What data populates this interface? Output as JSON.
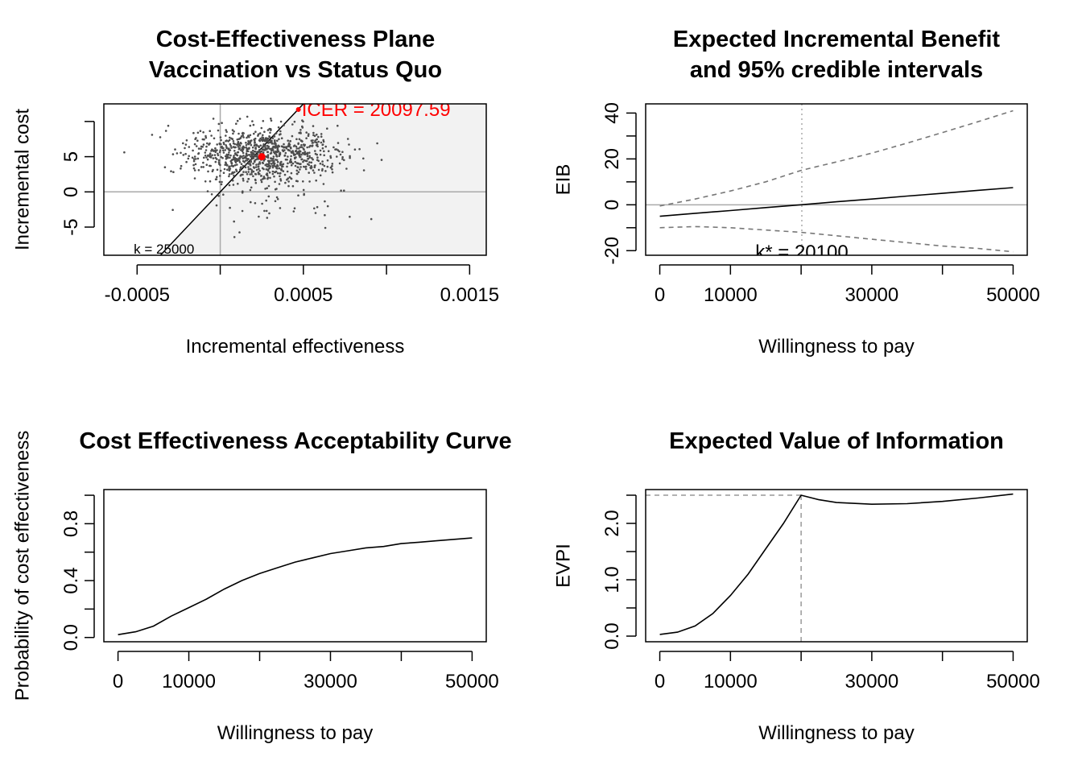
{
  "chart_data": [
    {
      "type": "scatter",
      "panel": "top-left",
      "title": [
        "Cost-Effectiveness Plane",
        "Vaccination vs Status Quo"
      ],
      "xlabel": "Incremental effectiveness",
      "ylabel": "Incremental cost",
      "xlim": [
        -0.0007,
        0.0016
      ],
      "ylim": [
        -9,
        12.5
      ],
      "xticks": [
        -0.0005,
        0,
        0.0005,
        0.001,
        0.0015
      ],
      "xtick_labels": [
        "-0.0005",
        "",
        "0.0005",
        "",
        "0.0015"
      ],
      "yticks": [
        -5,
        0,
        5,
        10
      ],
      "ytick_labels": [
        "-5",
        "0",
        "5",
        ""
      ],
      "mean_point": {
        "x": 0.00025,
        "y": 5.0
      },
      "icer_label": "ICER = 20097.59",
      "wtp_line": {
        "k": 25000
      },
      "wtp_label": "k = 25000",
      "n_points": 1000,
      "point_cloud": {
        "center_x": 0.00025,
        "center_y": 5.3,
        "spread_x": 0.00022,
        "spread_y": 2.0
      },
      "colors": {
        "points": "#4d4d4d",
        "icer": "#ff0000",
        "region": "#f2f2f2",
        "gridline": "#aaaaaa"
      }
    },
    {
      "type": "line",
      "panel": "top-right",
      "title": [
        "Expected Incremental Benefit",
        "and 95% credible intervals"
      ],
      "xlabel": "Willingness to pay",
      "ylabel": "EIB",
      "xlim": [
        -2000,
        52000
      ],
      "ylim": [
        -22,
        44
      ],
      "xticks": [
        0,
        10000,
        20000,
        30000,
        40000,
        50000
      ],
      "xtick_labels": [
        "0",
        "10000",
        "",
        "30000",
        "",
        "50000"
      ],
      "yticks": [
        -20,
        -10,
        0,
        10,
        20,
        30,
        40
      ],
      "ytick_labels": [
        "-20",
        "",
        "0",
        "",
        "20",
        "",
        "40"
      ],
      "x": [
        0,
        5000,
        10000,
        15000,
        20000,
        25000,
        30000,
        35000,
        40000,
        45000,
        50000
      ],
      "series": [
        {
          "style": "solid",
          "values": [
            -5.0,
            -3.7,
            -2.5,
            -1.2,
            0.0,
            1.3,
            2.5,
            3.8,
            5.0,
            6.3,
            7.5
          ]
        },
        {
          "style": "dashed",
          "values": [
            -0.5,
            2.5,
            6.0,
            10.0,
            15.0,
            18.7,
            22.5,
            26.9,
            31.5,
            36.2,
            41.0
          ]
        },
        {
          "style": "dashed",
          "values": [
            -10.0,
            -9.5,
            -10.0,
            -11.0,
            -12.0,
            -13.5,
            -15.0,
            -16.5,
            -18.0,
            -19.0,
            -20.5
          ]
        }
      ],
      "kstar": 20100,
      "kstar_label": "k* = 20100",
      "colors": {
        "ci": "#777777",
        "ref": "#aaaaaa"
      }
    },
    {
      "type": "line",
      "panel": "bottom-left",
      "title": "Cost Effectiveness Acceptability Curve",
      "xlabel": "Willingness to pay",
      "ylabel": "Probability of cost effectiveness",
      "xlim": [
        -2000,
        52000
      ],
      "ylim": [
        -0.03,
        1.04
      ],
      "xticks": [
        0,
        10000,
        20000,
        30000,
        40000,
        50000
      ],
      "xtick_labels": [
        "0",
        "10000",
        "",
        "30000",
        "",
        "50000"
      ],
      "yticks": [
        0,
        0.2,
        0.4,
        0.6,
        0.8,
        1.0
      ],
      "ytick_labels": [
        "0.0",
        "",
        "0.4",
        "",
        "0.8",
        ""
      ],
      "x": [
        0,
        2500,
        5000,
        7500,
        10000,
        12500,
        15000,
        17500,
        20000,
        22500,
        25000,
        27500,
        30000,
        32500,
        35000,
        37500,
        40000,
        42500,
        45000,
        47500,
        50000
      ],
      "values": [
        0.02,
        0.04,
        0.08,
        0.15,
        0.21,
        0.27,
        0.34,
        0.4,
        0.45,
        0.49,
        0.53,
        0.56,
        0.59,
        0.61,
        0.63,
        0.64,
        0.66,
        0.67,
        0.68,
        0.69,
        0.7
      ]
    },
    {
      "type": "line",
      "panel": "bottom-right",
      "title": "Expected Value of Information",
      "xlabel": "Willingness to pay",
      "ylabel": "EVPI",
      "xlim": [
        -2000,
        52000
      ],
      "ylim": [
        -0.1,
        2.6
      ],
      "xticks": [
        0,
        10000,
        20000,
        30000,
        40000,
        50000
      ],
      "xtick_labels": [
        "0",
        "10000",
        "",
        "30000",
        "",
        "50000"
      ],
      "yticks": [
        0,
        0.5,
        1.0,
        1.5,
        2.0,
        2.5
      ],
      "ytick_labels": [
        "0.0",
        "",
        "1.0",
        "",
        "2.0",
        ""
      ],
      "x": [
        0,
        2500,
        5000,
        7500,
        10000,
        12500,
        15000,
        17500,
        20000,
        22500,
        25000,
        30000,
        35000,
        40000,
        45000,
        50000
      ],
      "values": [
        0.03,
        0.07,
        0.18,
        0.4,
        0.72,
        1.1,
        1.55,
        2.0,
        2.5,
        2.42,
        2.37,
        2.34,
        2.35,
        2.39,
        2.45,
        2.52
      ],
      "peak": {
        "x": 20000,
        "y": 2.5
      },
      "colors": {
        "ref": "#999999"
      }
    }
  ]
}
